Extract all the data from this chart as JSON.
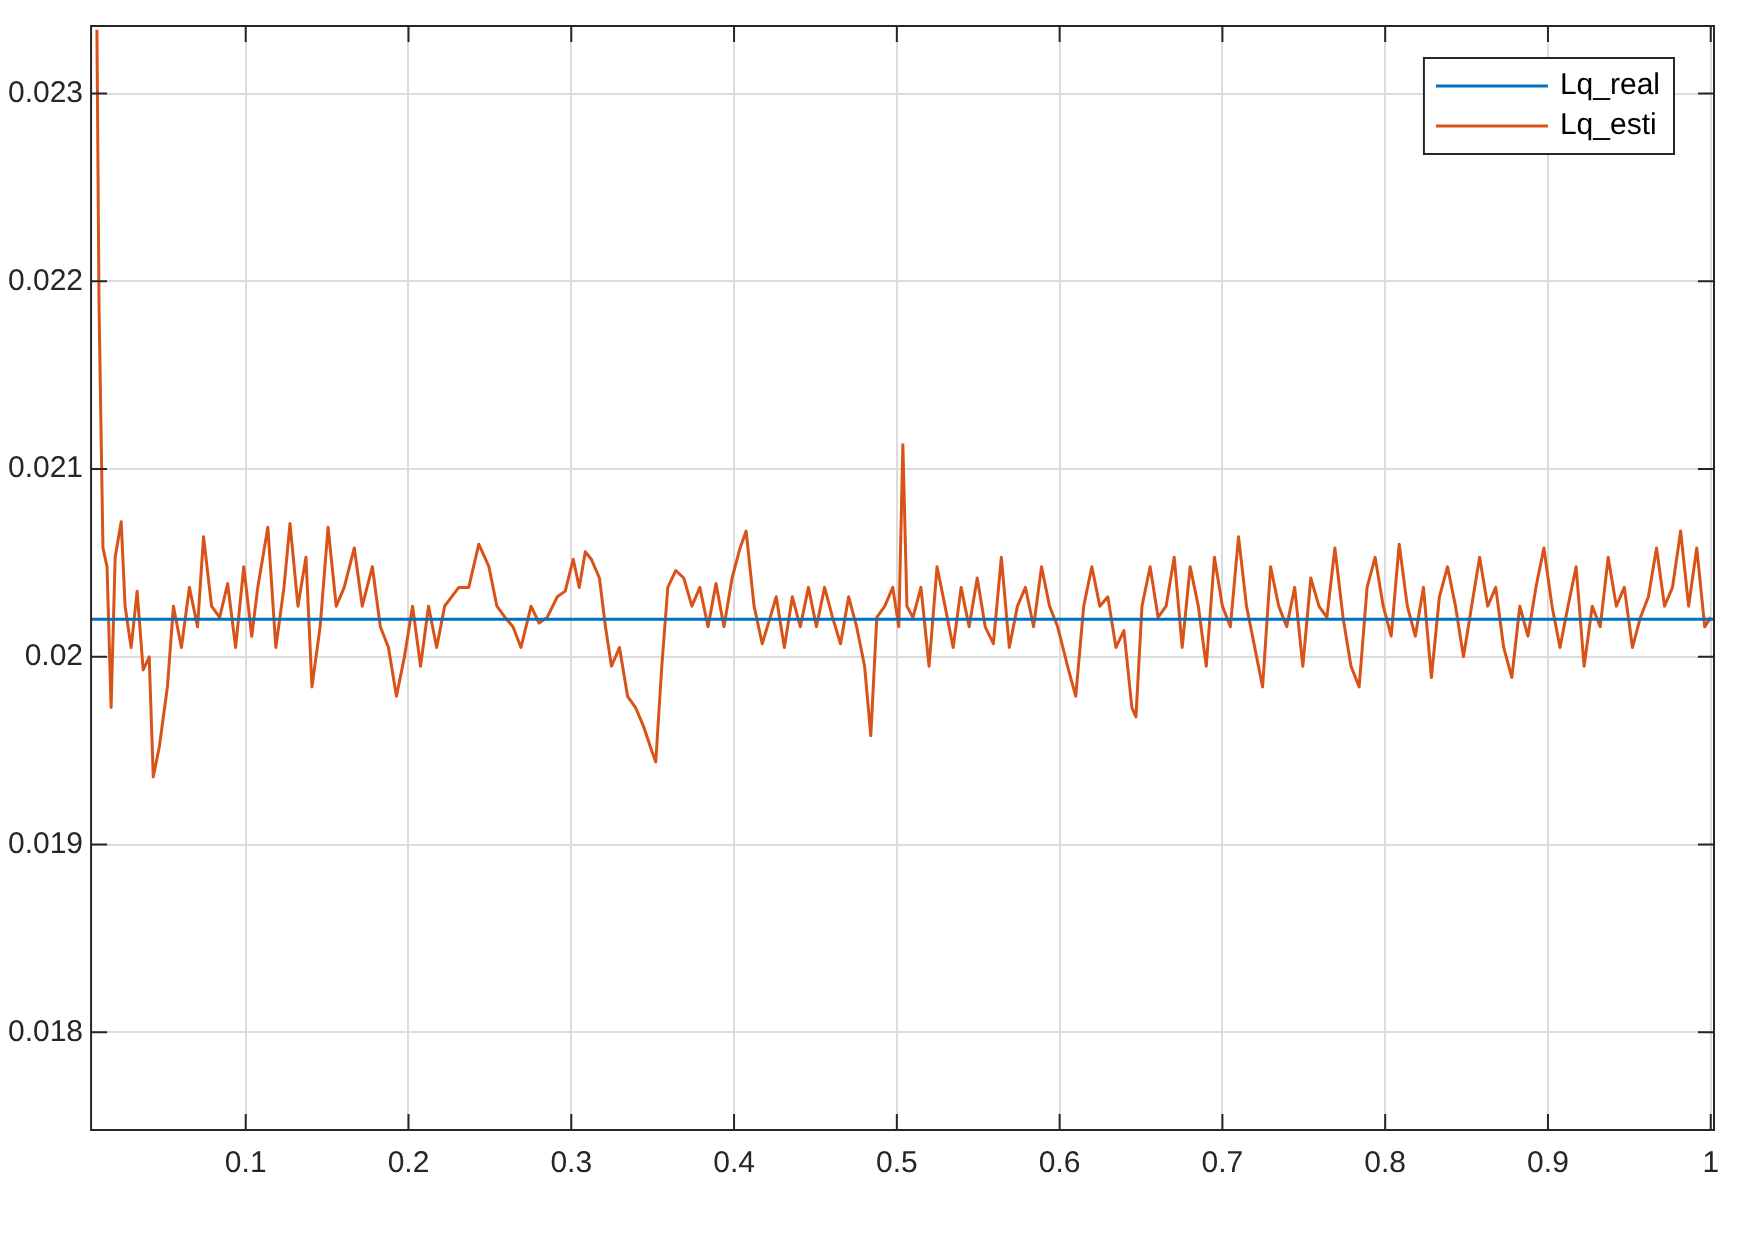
{
  "chart_data": {
    "type": "line",
    "xlim": [
      0.005,
      1.002
    ],
    "ylim": [
      0.01748,
      0.02336
    ],
    "xticks": [
      0.1,
      0.2,
      0.3,
      0.4,
      0.5,
      0.6,
      0.7,
      0.8,
      0.9,
      1
    ],
    "yticks": [
      0.018,
      0.019,
      0.02,
      0.021,
      0.022,
      0.023
    ],
    "grid": true,
    "legend": "top right",
    "marker": "none",
    "line_style": "solid",
    "series": [
      {
        "name": "Lq_real",
        "color": "#0072bd",
        "x": [
          0.005,
          1.002
        ],
        "values": [
          0.0202,
          0.0202
        ]
      },
      {
        "name": "Lq_esti",
        "color": "#d95319",
        "x": [
          0.0086,
          0.0099,
          0.0123,
          0.0148,
          0.0173,
          0.0198,
          0.0235,
          0.0259,
          0.0296,
          0.0333,
          0.037,
          0.0407,
          0.0432,
          0.0469,
          0.0519,
          0.0556,
          0.0605,
          0.0654,
          0.0704,
          0.0741,
          0.079,
          0.084,
          0.0889,
          0.0938,
          0.0988,
          0.1037,
          0.1074,
          0.1136,
          0.1185,
          0.1235,
          0.1272,
          0.1321,
          0.137,
          0.1407,
          0.1457,
          0.1506,
          0.1556,
          0.1605,
          0.1667,
          0.1716,
          0.1778,
          0.1827,
          0.1877,
          0.1926,
          0.1975,
          0.2025,
          0.2074,
          0.2123,
          0.2173,
          0.2222,
          0.2309,
          0.237,
          0.2432,
          0.2494,
          0.2543,
          0.2593,
          0.2642,
          0.2691,
          0.2753,
          0.2802,
          0.2852,
          0.2914,
          0.2963,
          0.3012,
          0.3049,
          0.3086,
          0.3123,
          0.3173,
          0.321,
          0.3247,
          0.3296,
          0.3346,
          0.3395,
          0.3444,
          0.3494,
          0.3519,
          0.3556,
          0.3593,
          0.3642,
          0.3691,
          0.3741,
          0.379,
          0.384,
          0.3889,
          0.3938,
          0.3988,
          0.4037,
          0.4074,
          0.4123,
          0.4173,
          0.4222,
          0.4259,
          0.4309,
          0.4358,
          0.4407,
          0.4457,
          0.4506,
          0.4556,
          0.4605,
          0.4654,
          0.4704,
          0.4753,
          0.4802,
          0.484,
          0.4877,
          0.4926,
          0.4975,
          0.5012,
          0.5037,
          0.5062,
          0.5099,
          0.5148,
          0.5198,
          0.5247,
          0.5296,
          0.5346,
          0.5395,
          0.5444,
          0.5494,
          0.5543,
          0.5593,
          0.5642,
          0.5691,
          0.5741,
          0.579,
          0.584,
          0.5889,
          0.5938,
          0.5988,
          0.6049,
          0.6099,
          0.6148,
          0.6198,
          0.6247,
          0.6296,
          0.6346,
          0.6395,
          0.6444,
          0.6469,
          0.6506,
          0.6556,
          0.6605,
          0.6654,
          0.6704,
          0.6753,
          0.6802,
          0.6852,
          0.6901,
          0.6951,
          0.7,
          0.7049,
          0.7099,
          0.7148,
          0.7247,
          0.7296,
          0.7346,
          0.7395,
          0.7444,
          0.7494,
          0.7543,
          0.7593,
          0.7642,
          0.7691,
          0.7741,
          0.779,
          0.784,
          0.7889,
          0.7938,
          0.7988,
          0.8037,
          0.8086,
          0.8136,
          0.8185,
          0.8235,
          0.8284,
          0.8333,
          0.8383,
          0.8432,
          0.8481,
          0.8531,
          0.858,
          0.863,
          0.8679,
          0.8728,
          0.8778,
          0.8827,
          0.8877,
          0.8926,
          0.8975,
          0.9025,
          0.9074,
          0.9123,
          0.9173,
          0.9222,
          0.9272,
          0.9321,
          0.937,
          0.942,
          0.9469,
          0.9519,
          0.9568,
          0.9617,
          0.9667,
          0.9716,
          0.9765,
          0.9815,
          0.9864,
          0.9914,
          0.9963,
          1.0
        ],
        "values": [
          0.02334,
          0.02186,
          0.02058,
          0.02048,
          0.01973,
          0.02053,
          0.02072,
          0.02027,
          0.02005,
          0.02035,
          0.01993,
          0.02,
          0.01936,
          0.01952,
          0.01984,
          0.02027,
          0.02005,
          0.02037,
          0.02016,
          0.02064,
          0.02027,
          0.02021,
          0.02039,
          0.02005,
          0.02048,
          0.02011,
          0.02037,
          0.02069,
          0.02005,
          0.02037,
          0.02071,
          0.02027,
          0.02053,
          0.01984,
          0.02016,
          0.02069,
          0.02027,
          0.02037,
          0.02058,
          0.02027,
          0.02048,
          0.02016,
          0.02005,
          0.01979,
          0.02,
          0.02027,
          0.01995,
          0.02027,
          0.02005,
          0.02027,
          0.02037,
          0.02037,
          0.0206,
          0.02048,
          0.02027,
          0.02021,
          0.02016,
          0.02005,
          0.02027,
          0.02018,
          0.02021,
          0.02032,
          0.02035,
          0.02052,
          0.02037,
          0.02056,
          0.02052,
          0.02042,
          0.02016,
          0.01995,
          0.02005,
          0.01979,
          0.01973,
          0.01963,
          0.0195,
          0.01944,
          0.01995,
          0.02037,
          0.02046,
          0.02042,
          0.02027,
          0.02037,
          0.02016,
          0.02039,
          0.02016,
          0.02042,
          0.02058,
          0.02067,
          0.02027,
          0.02007,
          0.02021,
          0.02032,
          0.02005,
          0.02032,
          0.02016,
          0.02037,
          0.02016,
          0.02037,
          0.02021,
          0.02007,
          0.02032,
          0.02016,
          0.01995,
          0.01958,
          0.02021,
          0.02027,
          0.02037,
          0.02016,
          0.02113,
          0.02027,
          0.02021,
          0.02037,
          0.01995,
          0.02048,
          0.02027,
          0.02005,
          0.02037,
          0.02016,
          0.02042,
          0.02016,
          0.02007,
          0.02053,
          0.02005,
          0.02027,
          0.02037,
          0.02016,
          0.02048,
          0.02027,
          0.02016,
          0.01995,
          0.01979,
          0.02027,
          0.02048,
          0.02027,
          0.02032,
          0.02005,
          0.02014,
          0.01973,
          0.01968,
          0.02027,
          0.02048,
          0.02021,
          0.02027,
          0.02053,
          0.02005,
          0.02048,
          0.02027,
          0.01995,
          0.02053,
          0.02027,
          0.02016,
          0.02064,
          0.02027,
          0.01984,
          0.02048,
          0.02027,
          0.02016,
          0.02037,
          0.01995,
          0.02042,
          0.02027,
          0.02021,
          0.02058,
          0.02021,
          0.01995,
          0.01984,
          0.02037,
          0.02053,
          0.02027,
          0.02011,
          0.0206,
          0.02027,
          0.02011,
          0.02037,
          0.01989,
          0.02032,
          0.02048,
          0.02027,
          0.02,
          0.02027,
          0.02053,
          0.02027,
          0.02037,
          0.02005,
          0.01989,
          0.02027,
          0.02011,
          0.02037,
          0.02058,
          0.02027,
          0.02005,
          0.02027,
          0.02048,
          0.01995,
          0.02027,
          0.02016,
          0.02053,
          0.02027,
          0.02037,
          0.02005,
          0.02021,
          0.02032,
          0.02058,
          0.02027,
          0.02037,
          0.02067,
          0.02027,
          0.02058,
          0.02016,
          0.02021
        ]
      }
    ]
  }
}
